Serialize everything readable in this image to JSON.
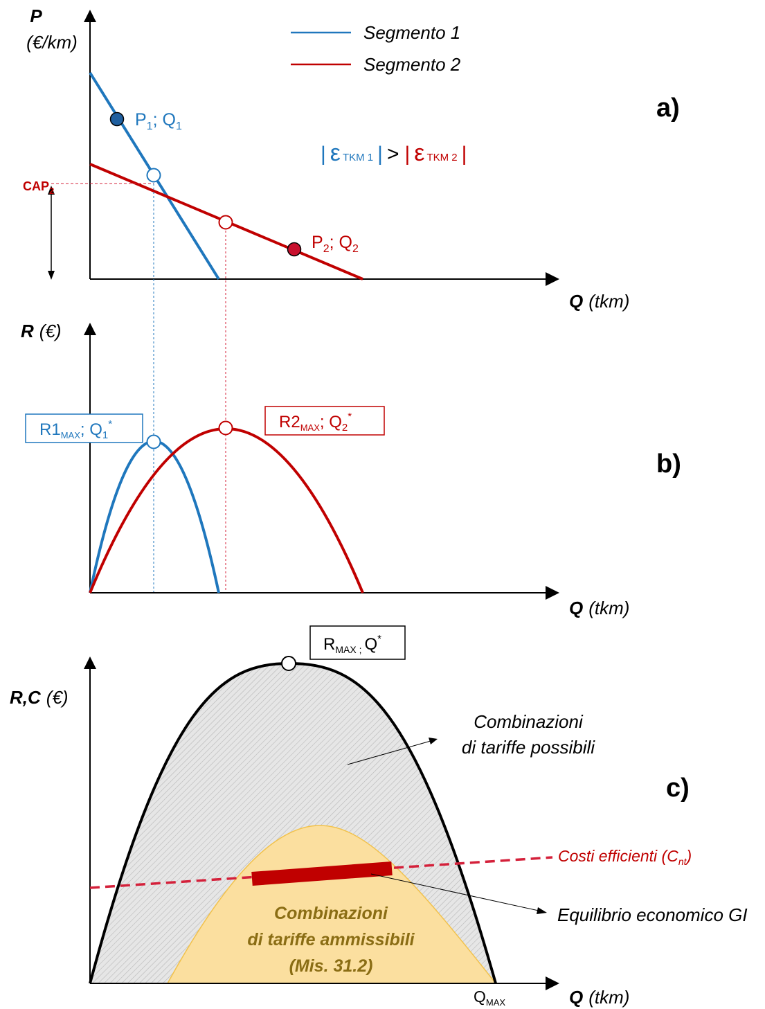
{
  "colors": {
    "segment1": "#1f77bd",
    "segment2": "#c00000",
    "efficient_costs": "#d4203a",
    "admissible_fill": "#fbdf9f",
    "admissible_text": "#8a6d14",
    "possible_fill": "#d9d9d9"
  },
  "legend": {
    "segment1": "Segmento 1",
    "segment2": "Segmento 2"
  },
  "panel_a": {
    "label": "a)",
    "y_label_main": "P",
    "y_label_unit": "(€/km)",
    "x_label_main": "Q",
    "x_label_unit": "(tkm)",
    "cap_main": "CAP",
    "cap_sub": "2",
    "p1_label": {
      "P": "P",
      "Psub": "1",
      "sep": "; ",
      "Q": "Q",
      "Qsub": "1"
    },
    "p2_label": {
      "P": "P",
      "Psub": "2",
      "sep": "; ",
      "Q": "Q",
      "Qsub": "2"
    },
    "elasticity": {
      "bar": "|",
      "eps": "ε",
      "sub1": "TKM 1",
      "sub2": "TKM 2",
      "gt": ">"
    }
  },
  "panel_b": {
    "label": "b)",
    "y_label_main": "R",
    "y_label_unit": "(€)",
    "x_label_main": "Q",
    "x_label_unit": "(tkm)",
    "box1": {
      "R": "R",
      "num": "1",
      "sub": "MAX",
      "sep": "; ",
      "Q": "Q",
      "Qsub": "1",
      "star": "*"
    },
    "box2": {
      "R": "R",
      "num": "2",
      "sub": "MAX",
      "sep": "; ",
      "Q": "Q",
      "Qsub": "2",
      "star": "*"
    }
  },
  "panel_c": {
    "label": "c)",
    "y_label_main": "R,C",
    "y_label_unit": "(€)",
    "x_label_main": "Q",
    "x_label_unit": "(tkm)",
    "top_box": {
      "R": "R",
      "sub": "MAX ;",
      "Q": "Q",
      "star": "*"
    },
    "qmax": {
      "Q": "Q",
      "sub": "MAX"
    },
    "possible_line1": "Combinazioni",
    "possible_line2": "di tariffe possibili",
    "admissible_line1": "Combinazioni",
    "admissible_line2": "di tariffe ammissibili",
    "admissible_line3": "(Mis. 31.2)",
    "costs_label": "Costi efficienti (C",
    "costs_sub": "nt",
    "costs_close": ")",
    "equilibrium_label": "Equilibrio economico GI"
  }
}
